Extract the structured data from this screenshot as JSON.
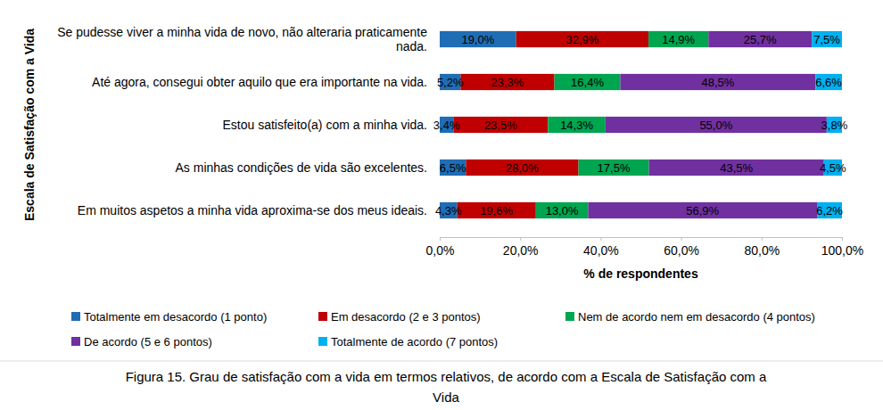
{
  "chart_data": {
    "type": "bar",
    "title": "Figura 15. Grau de satisfação com a vida em termos relativos, de acordo com a Escala de Satisfação com a Vida",
    "orientation": "horizontal",
    "stacked": true,
    "data_labels": true,
    "grid": false,
    "legend": "bottom",
    "y_label": "Escala de Satisfação com a Vida",
    "x_label": "% de respondentes",
    "categories": [
      "Se pudesse viver a minha vida de novo, não alteraria praticamente nada.",
      "Até agora, consegui obter aquilo que era importante na vida.",
      "Estou satisfeito(a) com a minha vida.",
      "As minhas condições de vida são excelentes.",
      "Em muitos aspetos a minha vida aproxima-se dos meus ideais."
    ],
    "xlim": [
      0,
      100
    ],
    "xticks": [
      {
        "value": 0,
        "label": "0,0%"
      },
      {
        "value": 20,
        "label": "20,0%"
      },
      {
        "value": 40,
        "label": "40,0%"
      },
      {
        "value": 60,
        "label": "60,0%"
      },
      {
        "value": 80,
        "label": "80,0%"
      },
      {
        "value": 100,
        "label": "100,0%"
      }
    ],
    "series": [
      {
        "name": "Totalmente em desacordo (1 ponto)",
        "color": "#1f6db5",
        "values": [
          19.0,
          5.2,
          3.4,
          6.5,
          4.3
        ],
        "value_labels": [
          "19,0%",
          "5,2%",
          "3,4%",
          "6,5%",
          "4,3%"
        ]
      },
      {
        "name": "Em desacordo (2 e 3 pontos)",
        "color": "#c00000",
        "values": [
          32.9,
          23.3,
          23.5,
          28.0,
          19.6
        ],
        "value_labels": [
          "32,9%",
          "23,3%",
          "23,5%",
          "28,0%",
          "19,6%"
        ]
      },
      {
        "name": "Nem de acordo nem em desacordo (4 pontos)",
        "color": "#00a550",
        "values": [
          14.9,
          16.4,
          14.3,
          17.5,
          13.0
        ],
        "value_labels": [
          "14,9%",
          "16,4%",
          "14,3%",
          "17,5%",
          "13,0%"
        ]
      },
      {
        "name": "De acordo (5 e 6 pontos)",
        "color": "#7030a0",
        "values": [
          25.7,
          48.5,
          55.0,
          43.5,
          56.9
        ],
        "value_labels": [
          "25,7%",
          "48,5%",
          "55,0%",
          "43,5%",
          "56,9%"
        ]
      },
      {
        "name": "Totalmente de acordo (7 pontos)",
        "color": "#00b0f0",
        "values": [
          7.5,
          6.6,
          3.8,
          4.5,
          6.2
        ],
        "value_labels": [
          "7,5%",
          "6,6%",
          "3,8%",
          "4,5%",
          "6,2%"
        ]
      }
    ]
  }
}
